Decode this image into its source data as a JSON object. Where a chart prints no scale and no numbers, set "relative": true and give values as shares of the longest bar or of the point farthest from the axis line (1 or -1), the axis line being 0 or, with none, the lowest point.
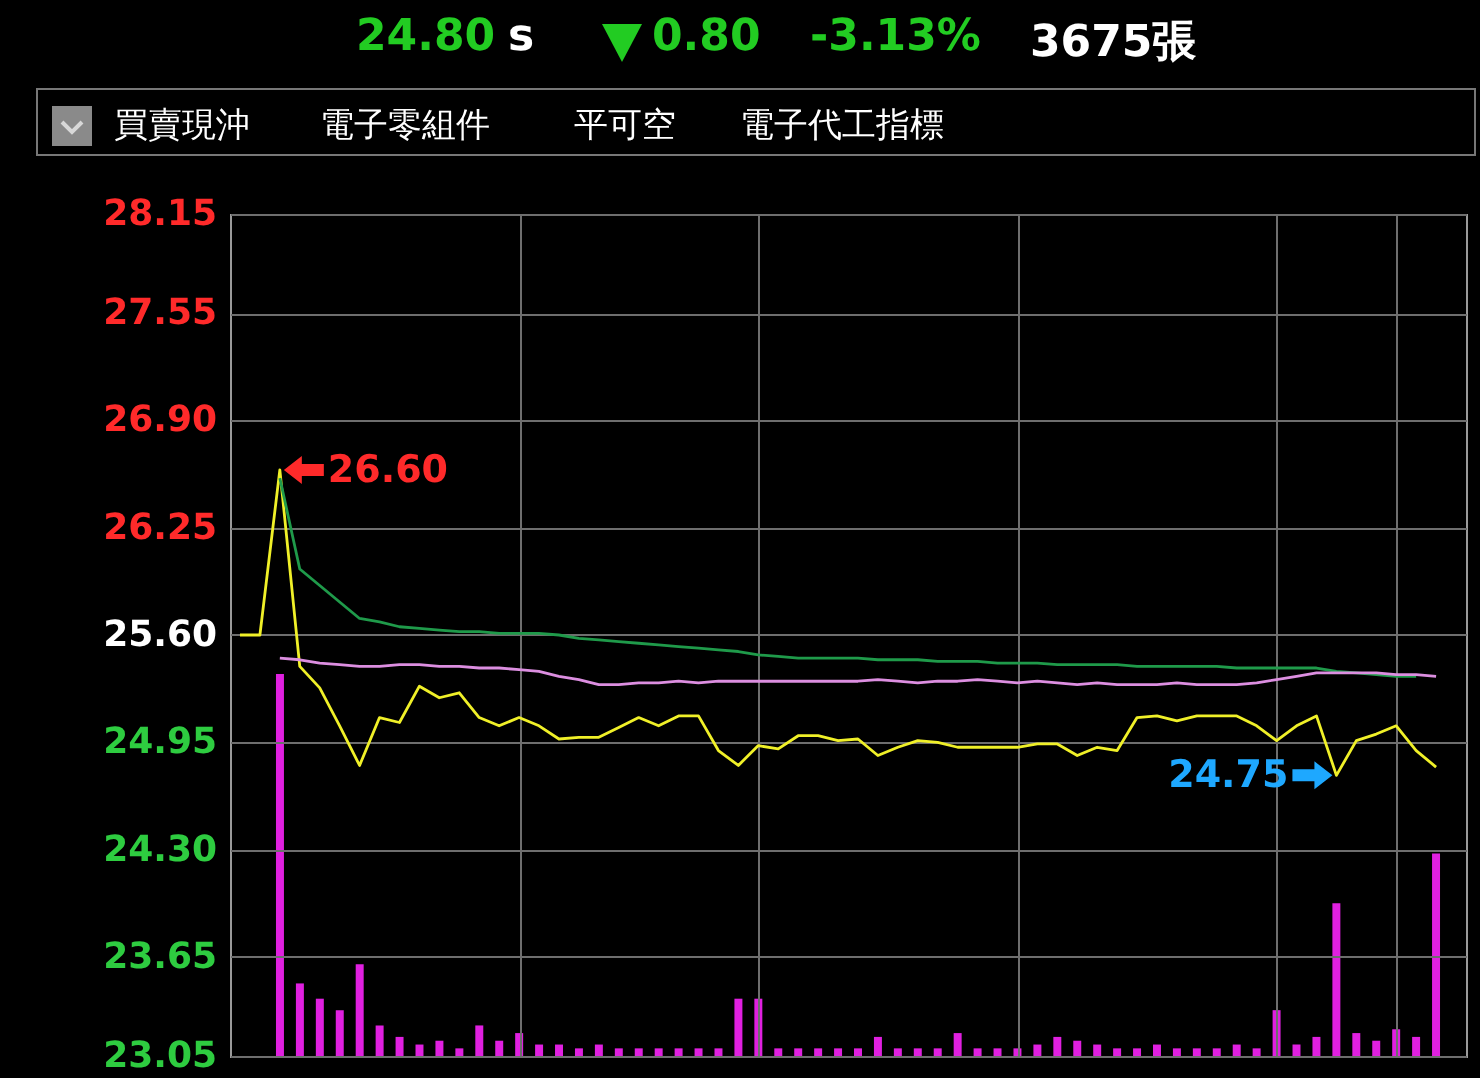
{
  "chart_data": [
    {
      "type": "line",
      "categories": [
        null,
        null,
        null,
        null,
        null,
        null,
        null,
        null,
        null,
        null,
        null,
        null,
        null,
        null,
        null,
        null,
        null,
        null,
        null,
        null,
        null,
        null,
        null,
        null,
        null,
        null,
        null,
        null,
        null,
        null,
        null,
        null,
        null,
        null,
        null,
        null,
        null,
        null,
        null,
        null,
        null,
        null,
        null,
        null,
        null,
        null,
        null,
        null,
        null,
        null,
        null,
        null,
        null,
        null,
        null,
        null,
        null,
        null,
        null,
        null,
        null,
        null
      ],
      "series": [
        {
          "color": "#f0f028",
          "values": [
            25.6,
            25.6,
            26.6,
            25.41,
            25.28,
            25.05,
            24.81,
            25.1,
            25.07,
            25.29,
            25.22,
            25.25,
            25.1,
            25.05,
            25.1,
            25.05,
            24.97,
            24.98,
            24.98,
            25.04,
            25.1,
            25.05,
            25.11,
            25.11,
            24.9,
            24.81,
            24.93,
            24.91,
            24.99,
            24.99,
            24.96,
            24.97,
            24.87,
            24.92,
            24.96,
            24.95,
            24.92,
            24.92,
            24.92,
            24.92,
            24.94,
            24.94,
            24.87,
            24.92,
            24.9,
            25.1,
            25.11,
            25.08,
            25.11,
            25.11,
            25.11,
            25.05,
            24.96,
            25.05,
            25.11,
            24.75,
            24.96,
            25.0,
            25.05,
            24.9,
            24.8,
            null
          ]
        },
        {
          "color": "#1f9a4a",
          "values": [
            null,
            null,
            26.55,
            26.0,
            25.9,
            25.8,
            25.7,
            25.68,
            25.65,
            25.64,
            25.63,
            25.62,
            25.62,
            25.61,
            25.61,
            25.61,
            25.6,
            25.58,
            25.57,
            25.56,
            25.55,
            25.54,
            25.53,
            25.52,
            25.51,
            25.5,
            25.48,
            25.47,
            25.46,
            25.46,
            25.46,
            25.46,
            25.45,
            25.45,
            25.45,
            25.44,
            25.44,
            25.44,
            25.43,
            25.43,
            25.43,
            25.42,
            25.42,
            25.42,
            25.42,
            25.41,
            25.41,
            25.41,
            25.41,
            25.41,
            25.4,
            25.4,
            25.4,
            25.4,
            25.4,
            25.38,
            25.37,
            25.36,
            25.35,
            25.35,
            null,
            null
          ]
        },
        {
          "color": "#dc8ee0",
          "values": [
            null,
            null,
            25.46,
            25.45,
            25.43,
            25.42,
            25.41,
            25.41,
            25.42,
            25.42,
            25.41,
            25.41,
            25.4,
            25.4,
            25.39,
            25.38,
            25.35,
            25.33,
            25.3,
            25.3,
            25.31,
            25.31,
            25.32,
            25.31,
            25.32,
            25.32,
            25.32,
            25.32,
            25.32,
            25.32,
            25.32,
            25.32,
            25.33,
            25.32,
            25.31,
            25.32,
            25.32,
            25.33,
            25.32,
            25.31,
            25.32,
            25.31,
            25.3,
            25.31,
            25.3,
            25.3,
            25.3,
            25.31,
            25.3,
            25.3,
            25.3,
            25.31,
            25.33,
            25.35,
            25.37,
            25.37,
            25.37,
            25.37,
            25.36,
            25.36,
            25.35,
            null
          ]
        }
      ],
      "ylim": [
        23.05,
        28.15
      ],
      "yticks": [
        {
          "value": 23.05,
          "label": "23.05"
        },
        {
          "value": 23.65,
          "label": "23.65"
        },
        {
          "value": 24.3,
          "label": "24.30"
        },
        {
          "value": 24.95,
          "label": "24.95"
        },
        {
          "value": 25.6,
          "label": "25.60"
        },
        {
          "value": 26.25,
          "label": "26.25"
        },
        {
          "value": 26.9,
          "label": "26.90"
        },
        {
          "value": 27.55,
          "label": "27.55"
        },
        {
          "value": 28.15,
          "label": "28.15"
        }
      ],
      "grid": true,
      "tick_labels": "y",
      "annotations": [
        "24.80",
        "s",
        "0.80",
        "-3.13%",
        "3675張",
        "買賣現沖",
        "電子零組件",
        "平可空",
        "電子代工指標",
        "26.60",
        "24.75"
      ]
    },
    {
      "type": "bar",
      "relative": true,
      "tick_labels": false,
      "color": "#e020e0",
      "categories": [
        null,
        null,
        null,
        null,
        null,
        null,
        null,
        null,
        null,
        null,
        null,
        null,
        null,
        null,
        null,
        null,
        null,
        null,
        null,
        null,
        null,
        null,
        null,
        null,
        null,
        null,
        null,
        null,
        null,
        null,
        null,
        null,
        null,
        null,
        null,
        null,
        null,
        null,
        null,
        null,
        null,
        null,
        null,
        null,
        null,
        null,
        null,
        null,
        null,
        null,
        null,
        null,
        null,
        null,
        null,
        null,
        null,
        null,
        null
      ],
      "values": [
        1,
        0.19,
        0.15,
        0.12,
        0.24,
        0.08,
        0.05,
        0.03,
        0.04,
        0.02,
        0.08,
        0.04,
        0.06,
        0.03,
        0.03,
        0.02,
        0.03,
        0.02,
        0.02,
        0.02,
        0.02,
        0.02,
        0.02,
        0.15,
        0.15,
        0.02,
        0.02,
        0.02,
        0.02,
        0.02,
        0.05,
        0.02,
        0.02,
        0.02,
        0.06,
        0.02,
        0.02,
        0.02,
        0.03,
        0.05,
        0.04,
        0.03,
        0.02,
        0.02,
        0.03,
        0.02,
        0.02,
        0.02,
        0.03,
        0.02,
        0.12,
        0.03,
        0.05,
        0.4,
        0.06,
        0.04,
        0.07,
        0.05,
        0.53
      ]
    }
  ]
}
